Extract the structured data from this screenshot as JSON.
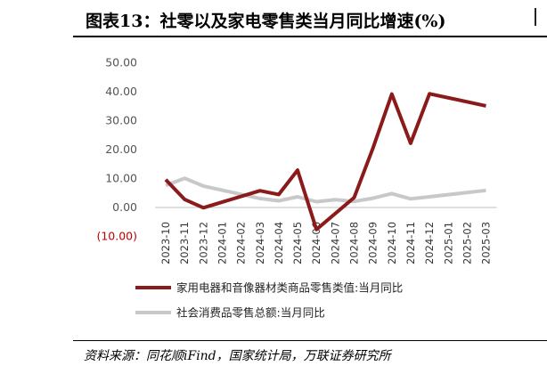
{
  "title": "图表13：社零以及家电零售类当月同比增速(%)",
  "source": "资料来源：同花顺iFind，国家统计局，万联证券研究所",
  "colors": {
    "series1": "#8b1a1a",
    "series2": "#c8c8c8",
    "negative_tick": "#c00000"
  },
  "chart_data": {
    "type": "line",
    "x": [
      "2023-10",
      "2023-11",
      "2023-12",
      "2024-01",
      "2024-02",
      "2024-03",
      "2024-04",
      "2024-05",
      "2024-06",
      "2024-07",
      "2024-08",
      "2024-09",
      "2024-10",
      "2024-11",
      "2024-12",
      "2025-01",
      "2025-02",
      "2025-03"
    ],
    "y_ticks": [
      -10,
      0,
      10,
      20,
      30,
      40,
      50
    ],
    "y_tick_labels": [
      "(10.00)",
      "0.00",
      "10.00",
      "20.00",
      "30.00",
      "40.00",
      "50.00"
    ],
    "ylim": [
      -10,
      50
    ],
    "grid": false,
    "legend_position": "bottom",
    "series": [
      {
        "name": "家用电器和音像器材类商品零售类值:当月同比",
        "values": [
          9.6,
          2.8,
          -0.1,
          null,
          null,
          5.8,
          4.5,
          12.9,
          -7.6,
          null,
          3.4,
          20.5,
          39.2,
          22.2,
          39.3,
          null,
          null,
          35.1
        ]
      },
      {
        "name": "社会消费品零售总额:当月同比",
        "values": [
          7.6,
          10.1,
          7.4,
          null,
          null,
          3.1,
          2.3,
          3.7,
          2.0,
          2.7,
          2.1,
          3.2,
          4.8,
          3.0,
          3.7,
          null,
          null,
          5.9
        ]
      }
    ]
  }
}
